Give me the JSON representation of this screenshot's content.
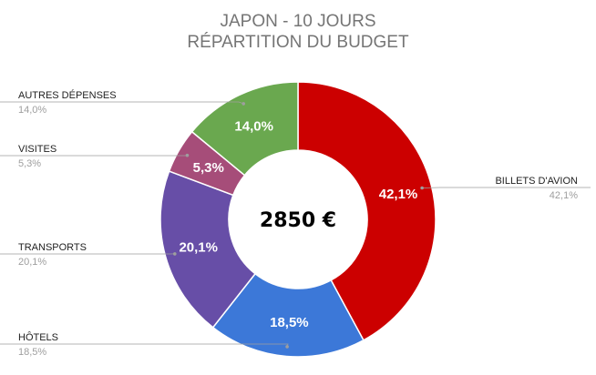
{
  "chart_data": {
    "type": "pie",
    "variant": "donut",
    "title": "JAPON - 10 JOURS",
    "subtitle": "RÉPARTITION DU BUDGET",
    "center_label": "2850 €",
    "start_category": "BILLETS D'AVION",
    "direction": "clockwise",
    "legend": "callout labels around the chart",
    "categories": [
      "BILLETS D'AVION",
      "HÔTELS",
      "TRANSPORTS",
      "VISITES",
      "AUTRES DÉPENSES"
    ],
    "values": [
      42.1,
      18.5,
      20.1,
      5.3,
      14.0
    ],
    "display_values": [
      "42,1%",
      "18,5%",
      "20,1%",
      "5,3%",
      "14,0%"
    ],
    "colors": [
      "#cc0000",
      "#3c78d8",
      "#674ea7",
      "#a64d79",
      "#6aa84f"
    ]
  }
}
